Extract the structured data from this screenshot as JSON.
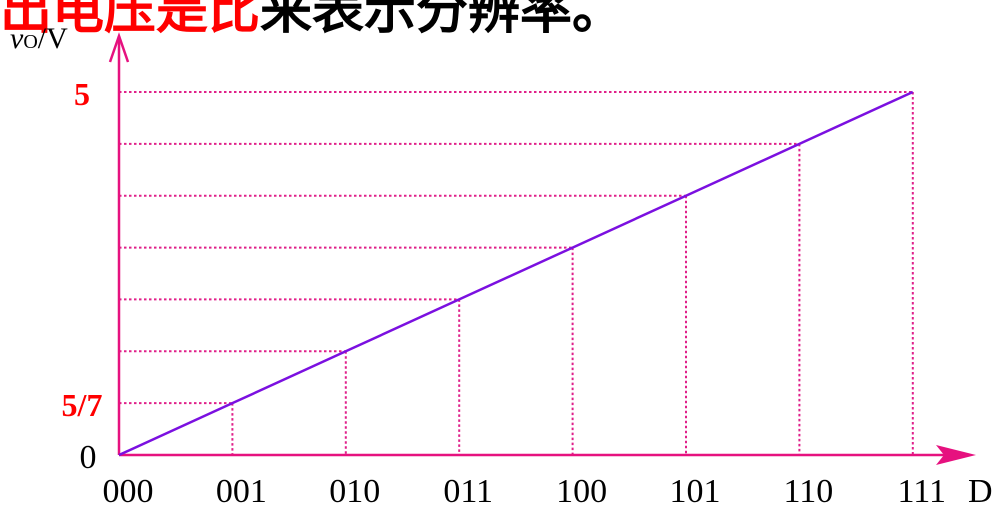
{
  "header": {
    "text_red": "出电压是比",
    "text_black": "来表示分辨率。"
  },
  "chart_data": {
    "type": "line",
    "ylabel_italic": "v",
    "ylabel_sub": "O",
    "ylabel_unit": "/V",
    "xlabel": "D",
    "categories": [
      "000",
      "001",
      "010",
      "011",
      "100",
      "101",
      "110",
      "111"
    ],
    "x": [
      0,
      1,
      2,
      3,
      4,
      5,
      6,
      7
    ],
    "y": [
      0,
      0.714,
      1.429,
      2.143,
      2.857,
      3.571,
      4.286,
      5
    ],
    "ylim": [
      0,
      5
    ],
    "y_tick_labels": [
      {
        "label": "0",
        "value": 0,
        "color": "#000000",
        "bold": false
      },
      {
        "label": "5/7",
        "value": 0.714,
        "color": "#ff0000",
        "bold": true
      },
      {
        "label": "5",
        "value": 5,
        "color": "#ff0000",
        "bold": true
      }
    ],
    "grid": "dotted guides to each step",
    "colors": {
      "axis": "#e6117f",
      "guide": "#e0208a",
      "line": "#7b10e0",
      "category_label": "#000000",
      "header_red": "#ff0000"
    }
  }
}
